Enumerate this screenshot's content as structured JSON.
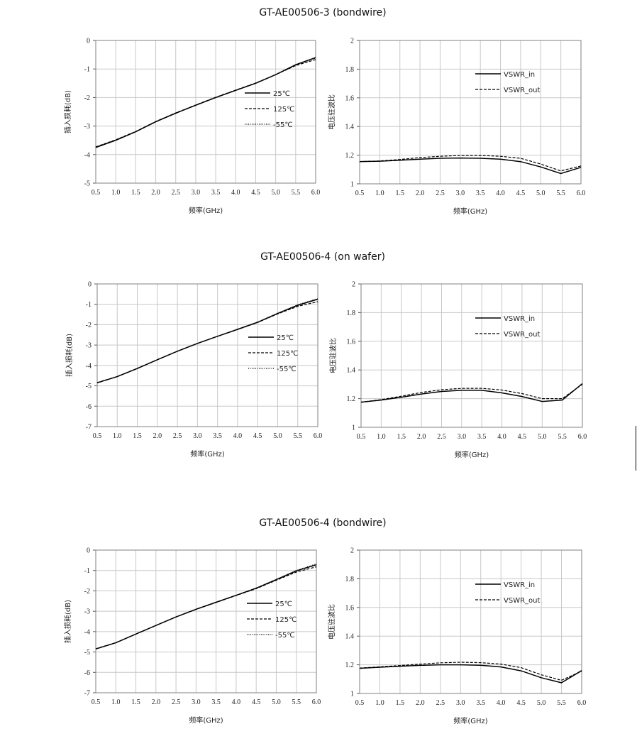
{
  "sections": [
    {
      "title": "GT-AE00506-3  (bondwire)"
    },
    {
      "title": "GT-AE00506-4  (on wafer)"
    },
    {
      "title": "GT-AE00506-4  (bondwire)"
    }
  ],
  "chart_data": [
    {
      "type": "line",
      "xlabel": "频率(GHz)",
      "ylabel": "插入损耗(dB)",
      "xlim": [
        0.5,
        6.0
      ],
      "ylim": [
        -5,
        0
      ],
      "xticks": [
        "0.5",
        "1.0",
        "1.5",
        "2.0",
        "2.5",
        "3.0",
        "3.5",
        "4.0",
        "4.5",
        "5.0",
        "5.5",
        "6.0"
      ],
      "yticks": [
        "0",
        "-1",
        "-2",
        "-3",
        "-4",
        "-5"
      ],
      "grid": true,
      "legend": "center-right",
      "x": [
        0.5,
        1.0,
        1.5,
        2.0,
        2.5,
        3.0,
        3.5,
        4.0,
        4.5,
        5.0,
        5.5,
        6.0
      ],
      "series": [
        {
          "name": "25℃",
          "style": "solid",
          "values": [
            -3.75,
            -3.5,
            -3.2,
            -2.85,
            -2.55,
            -2.27,
            -2.0,
            -1.75,
            -1.5,
            -1.2,
            -0.85,
            -0.6
          ]
        },
        {
          "name": "125℃",
          "style": "dashed",
          "values": [
            -3.73,
            -3.48,
            -3.19,
            -2.84,
            -2.54,
            -2.26,
            -1.99,
            -1.74,
            -1.49,
            -1.2,
            -0.88,
            -0.67
          ]
        },
        {
          "name": "-55℃",
          "style": "dotted",
          "values": [
            -3.74,
            -3.49,
            -3.2,
            -2.85,
            -2.55,
            -2.27,
            -2.0,
            -1.75,
            -1.5,
            -1.2,
            -0.86,
            -0.62
          ]
        }
      ]
    },
    {
      "type": "line",
      "xlabel": "频率(GHz)",
      "ylabel": "电压驻波比",
      "xlim": [
        0.5,
        6.0
      ],
      "ylim": [
        1,
        2
      ],
      "xticks": [
        "0.5",
        "1.0",
        "1.5",
        "2.0",
        "2.5",
        "3.0",
        "3.5",
        "4.0",
        "4.5",
        "5.0",
        "5.5",
        "6.0"
      ],
      "yticks": [
        "2",
        "1.8",
        "1.6",
        "1.4",
        "1.2",
        "1"
      ],
      "grid": true,
      "legend": "top-right",
      "x": [
        0.5,
        1.0,
        1.5,
        2.0,
        2.5,
        3.0,
        3.5,
        4.0,
        4.5,
        5.0,
        5.5,
        6.0
      ],
      "series": [
        {
          "name": "VSWR_in",
          "style": "solid",
          "values": [
            1.155,
            1.158,
            1.165,
            1.172,
            1.178,
            1.18,
            1.178,
            1.172,
            1.155,
            1.118,
            1.072,
            1.115
          ]
        },
        {
          "name": "VSWR_out",
          "style": "dashed",
          "values": [
            1.155,
            1.16,
            1.17,
            1.183,
            1.192,
            1.198,
            1.198,
            1.192,
            1.178,
            1.138,
            1.09,
            1.125
          ]
        }
      ]
    },
    {
      "type": "line",
      "xlabel": "频率(GHz)",
      "ylabel": "插入损耗(dB)",
      "xlim": [
        0.5,
        6.0
      ],
      "ylim": [
        -7,
        0
      ],
      "xticks": [
        "0.5",
        "1.0",
        "1.5",
        "2.0",
        "2.5",
        "3.0",
        "3.5",
        "4.0",
        "4.5",
        "5.0",
        "5.5",
        "6.0"
      ],
      "yticks": [
        "0",
        "-1",
        "-2",
        "-3",
        "-4",
        "-5",
        "-6",
        "-7"
      ],
      "grid": true,
      "legend": "center-right",
      "x": [
        0.5,
        1.0,
        1.5,
        2.0,
        2.5,
        3.0,
        3.5,
        4.0,
        4.5,
        5.0,
        5.5,
        6.0
      ],
      "series": [
        {
          "name": "25℃",
          "style": "solid",
          "values": [
            -4.85,
            -4.55,
            -4.15,
            -3.72,
            -3.3,
            -2.92,
            -2.57,
            -2.23,
            -1.88,
            -1.45,
            -1.05,
            -0.75
          ]
        },
        {
          "name": "125℃",
          "style": "dashed",
          "values": [
            -4.84,
            -4.54,
            -4.14,
            -3.72,
            -3.3,
            -2.92,
            -2.57,
            -2.24,
            -1.89,
            -1.47,
            -1.1,
            -0.87
          ]
        },
        {
          "name": "-55℃",
          "style": "dotted",
          "values": [
            -4.85,
            -4.55,
            -4.15,
            -3.72,
            -3.3,
            -2.92,
            -2.57,
            -2.23,
            -1.87,
            -1.44,
            -1.02,
            -0.72
          ]
        }
      ]
    },
    {
      "type": "line",
      "xlabel": "频率(GHz)",
      "ylabel": "电压驻波比",
      "xlim": [
        0.5,
        6.0
      ],
      "ylim": [
        1,
        2
      ],
      "xticks": [
        "0.5",
        "1.0",
        "1.5",
        "2.0",
        "2.5",
        "3.0",
        "3.5",
        "4.0",
        "4.5",
        "5.0",
        "5.5",
        "6.0"
      ],
      "yticks": [
        "2",
        "1.8",
        "1.6",
        "1.4",
        "1.2",
        "1"
      ],
      "grid": true,
      "legend": "top-right",
      "x": [
        0.5,
        1.0,
        1.5,
        2.0,
        2.5,
        3.0,
        3.5,
        4.0,
        4.5,
        5.0,
        5.5,
        6.0
      ],
      "series": [
        {
          "name": "VSWR_in",
          "style": "solid",
          "values": [
            1.175,
            1.19,
            1.21,
            1.232,
            1.25,
            1.258,
            1.258,
            1.24,
            1.215,
            1.18,
            1.19,
            1.305
          ]
        },
        {
          "name": "VSWR_out",
          "style": "dashed",
          "values": [
            1.175,
            1.193,
            1.217,
            1.243,
            1.262,
            1.272,
            1.272,
            1.26,
            1.235,
            1.2,
            1.2,
            1.3
          ]
        }
      ]
    },
    {
      "type": "line",
      "xlabel": "频率(GHz)",
      "ylabel": "插入损耗(dB)",
      "xlim": [
        0.5,
        6.0
      ],
      "ylim": [
        -7,
        0
      ],
      "xticks": [
        "0.5",
        "1.0",
        "1.5",
        "2.0",
        "2.5",
        "3.0",
        "3.5",
        "4.0",
        "4.5",
        "5.0",
        "5.5",
        "6.0"
      ],
      "yticks": [
        "0",
        "-1",
        "-2",
        "-3",
        "-4",
        "-5",
        "-6",
        "-7"
      ],
      "grid": true,
      "legend": "center-right",
      "x": [
        0.5,
        1.0,
        1.5,
        2.0,
        2.5,
        3.0,
        3.5,
        4.0,
        4.5,
        5.0,
        5.5,
        6.0
      ],
      "series": [
        {
          "name": "25℃",
          "style": "solid",
          "values": [
            -4.85,
            -4.55,
            -4.12,
            -3.7,
            -3.28,
            -2.9,
            -2.56,
            -2.22,
            -1.87,
            -1.45,
            -1.02,
            -0.72
          ]
        },
        {
          "name": "125℃",
          "style": "dashed",
          "values": [
            -4.84,
            -4.54,
            -4.12,
            -3.7,
            -3.28,
            -2.91,
            -2.57,
            -2.23,
            -1.89,
            -1.48,
            -1.08,
            -0.82
          ]
        },
        {
          "name": "-55℃",
          "style": "dotted",
          "values": [
            -4.85,
            -4.55,
            -4.12,
            -3.7,
            -3.28,
            -2.9,
            -2.56,
            -2.22,
            -1.86,
            -1.44,
            -1.0,
            -0.68
          ]
        }
      ]
    },
    {
      "type": "line",
      "xlabel": "频率(GHz)",
      "ylabel": "电压驻波比",
      "xlim": [
        0.5,
        6.0
      ],
      "ylim": [
        1,
        2
      ],
      "xticks": [
        "0.5",
        "1.0",
        "1.5",
        "2.0",
        "2.5",
        "3.0",
        "3.5",
        "4.0",
        "4.5",
        "5.0",
        "5.5",
        "6.0"
      ],
      "yticks": [
        "2",
        "1.8",
        "1.6",
        "1.4",
        "1.2",
        "1"
      ],
      "grid": true,
      "legend": "top-right",
      "x": [
        0.5,
        1.0,
        1.5,
        2.0,
        2.5,
        3.0,
        3.5,
        4.0,
        4.5,
        5.0,
        5.5,
        6.0
      ],
      "series": [
        {
          "name": "VSWR_in",
          "style": "solid",
          "values": [
            1.175,
            1.183,
            1.19,
            1.196,
            1.2,
            1.2,
            1.197,
            1.185,
            1.158,
            1.11,
            1.075,
            1.16
          ]
        },
        {
          "name": "VSWR_out",
          "style": "dashed",
          "values": [
            1.177,
            1.186,
            1.195,
            1.205,
            1.214,
            1.218,
            1.215,
            1.205,
            1.18,
            1.13,
            1.092,
            1.155
          ]
        }
      ]
    }
  ]
}
